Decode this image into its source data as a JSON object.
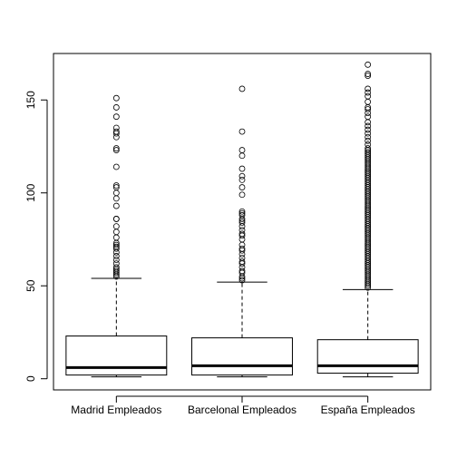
{
  "chart_data": {
    "type": "box",
    "title": "",
    "xlabel": "",
    "ylabel": "",
    "ylim": [
      -6,
      175
    ],
    "yticks": [
      0,
      50,
      100,
      150
    ],
    "grid": false,
    "categories": [
      "Madrid Empleados",
      "Barcelonal Empleados",
      "España Empleados"
    ],
    "boxes": [
      {
        "name": "Madrid Empleados",
        "whisker_low": 1,
        "q1": 2,
        "median": 6,
        "q3": 23,
        "whisker_high": 54,
        "outliers": [
          55,
          56,
          57,
          58,
          59,
          60,
          62,
          64,
          66,
          68,
          70,
          71,
          72,
          73,
          76,
          79,
          82,
          86,
          86,
          93,
          97,
          100,
          103,
          104,
          114,
          123,
          124,
          130,
          132,
          133,
          135,
          141,
          146,
          151
        ]
      },
      {
        "name": "Barcelonal Empleados",
        "whisker_low": 1,
        "q1": 2,
        "median": 7,
        "q3": 22,
        "whisker_high": 52,
        "outliers": [
          53,
          54,
          55,
          57,
          58,
          60,
          62,
          63,
          65,
          67,
          69,
          70,
          72,
          75,
          77,
          78,
          80,
          82,
          84,
          85,
          86,
          88,
          89,
          90,
          99,
          103,
          107,
          109,
          113,
          120,
          123,
          133,
          156
        ]
      },
      {
        "name": "España Empleados",
        "whisker_low": 1,
        "q1": 3,
        "median": 7,
        "q3": 21,
        "whisker_high": 48,
        "outliers": [
          49,
          50,
          51,
          52,
          53,
          54,
          55,
          56,
          57,
          58,
          59,
          60,
          61,
          62,
          63,
          64,
          65,
          66,
          67,
          68,
          69,
          70,
          71,
          72,
          73,
          74,
          75,
          76,
          77,
          78,
          79,
          80,
          81,
          82,
          83,
          84,
          85,
          86,
          87,
          88,
          89,
          90,
          91,
          92,
          93,
          94,
          95,
          96,
          97,
          98,
          99,
          100,
          101,
          102,
          103,
          104,
          105,
          106,
          107,
          108,
          109,
          110,
          111,
          112,
          113,
          114,
          115,
          116,
          117,
          118,
          119,
          120,
          121,
          122,
          123,
          124,
          126,
          128,
          130,
          132,
          134,
          136,
          138,
          141,
          143,
          145,
          146,
          149,
          152,
          154,
          156,
          163,
          164,
          169
        ]
      }
    ]
  }
}
